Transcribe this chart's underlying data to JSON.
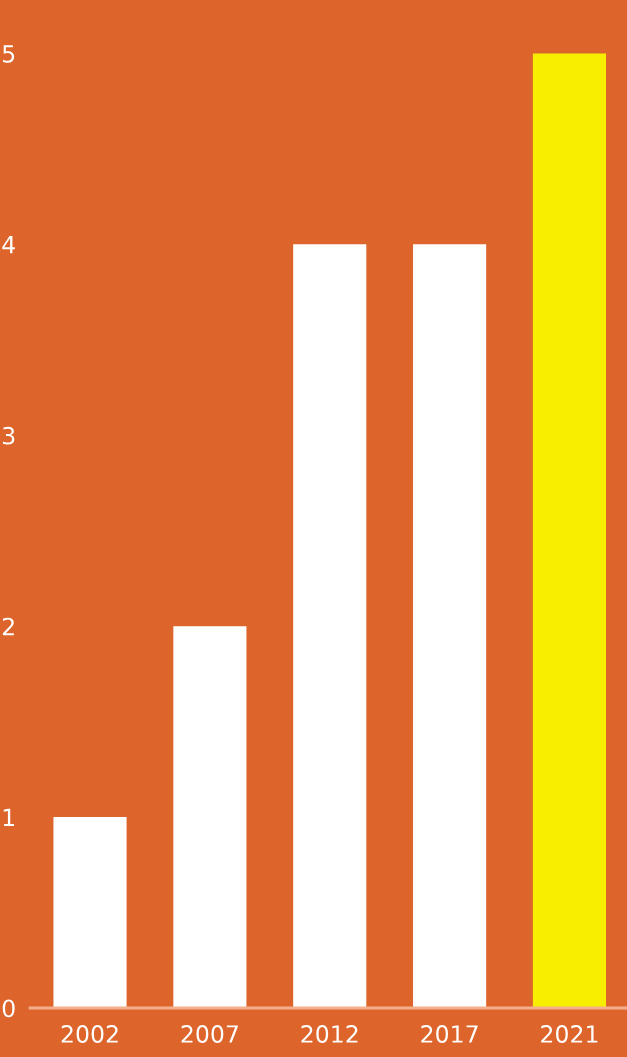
{
  "chart_data": {
    "type": "bar",
    "categories": [
      "2002",
      "2007",
      "2012",
      "2017",
      "2021"
    ],
    "values": [
      1,
      2,
      4,
      4,
      5
    ],
    "colors": [
      "#ffffff",
      "#ffffff",
      "#ffffff",
      "#ffffff",
      "#f8ef00"
    ],
    "ylim": [
      0,
      5.28
    ],
    "yticks": [
      0,
      1,
      2,
      3,
      4,
      5
    ],
    "grid": false
  }
}
